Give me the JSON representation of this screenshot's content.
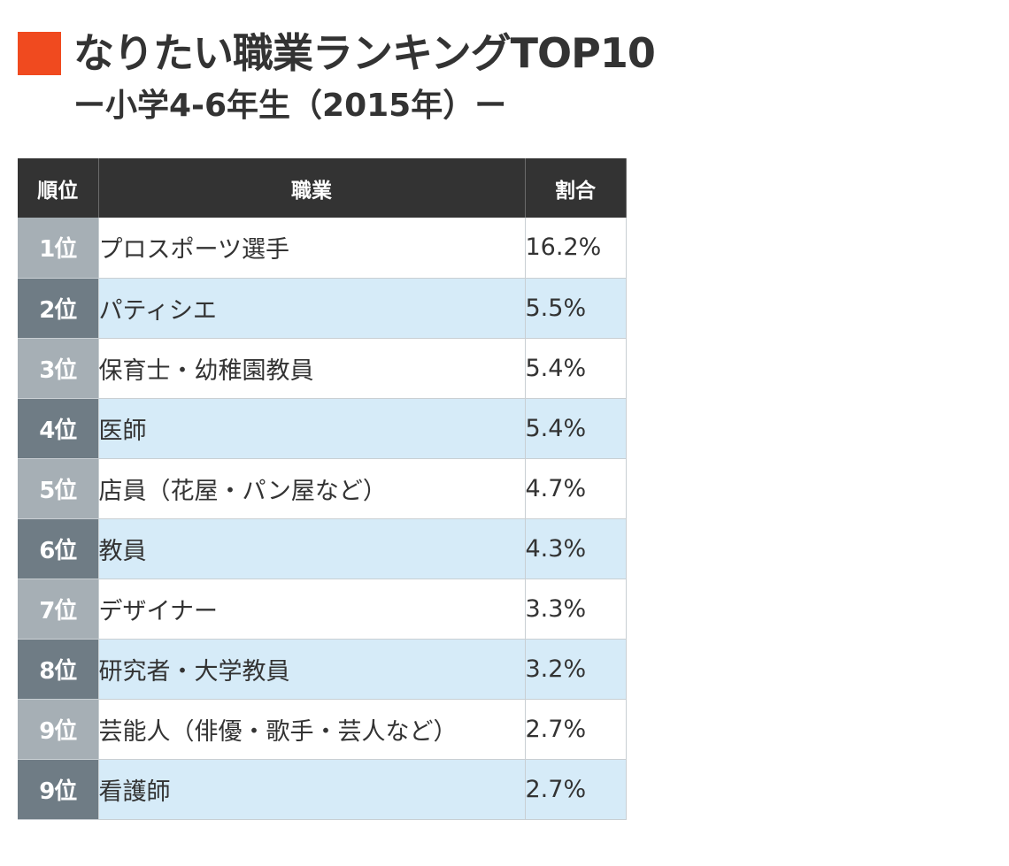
{
  "chart_data": {
    "type": "table",
    "title": "なりたい職業ランキングTOP10",
    "subtitle": "ー小学4-6年生（2015年）ー",
    "columns": [
      "順位",
      "職業",
      "割合"
    ],
    "rows": [
      {
        "rank": "1位",
        "job": "プロスポーツ選手",
        "share": "16.2%",
        "value": 16.2
      },
      {
        "rank": "2位",
        "job": "パティシエ",
        "share": "5.5%",
        "value": 5.5
      },
      {
        "rank": "3位",
        "job": "保育士・幼稚園教員",
        "share": "5.4%",
        "value": 5.4
      },
      {
        "rank": "4位",
        "job": "医師",
        "share": "5.4%",
        "value": 5.4
      },
      {
        "rank": "5位",
        "job": "店員（花屋・パン屋など）",
        "share": "4.7%",
        "value": 4.7
      },
      {
        "rank": "6位",
        "job": "教員",
        "share": "4.3%",
        "value": 4.3
      },
      {
        "rank": "7位",
        "job": "デザイナー",
        "share": "3.3%",
        "value": 3.3
      },
      {
        "rank": "8位",
        "job": "研究者・大学教員",
        "share": "3.2%",
        "value": 3.2
      },
      {
        "rank": "9位",
        "job": "芸能人（俳優・歌手・芸人など）",
        "share": "2.7%",
        "value": 2.7
      },
      {
        "rank": "9位",
        "job": "看護師",
        "share": "2.7%",
        "value": 2.7
      }
    ]
  },
  "colors": {
    "accent": "#f04a1f",
    "header_bg": "#333333",
    "rank_light": "#a6afb5",
    "rank_dark": "#6f7c85",
    "row_alt": "#d6ebf8"
  }
}
